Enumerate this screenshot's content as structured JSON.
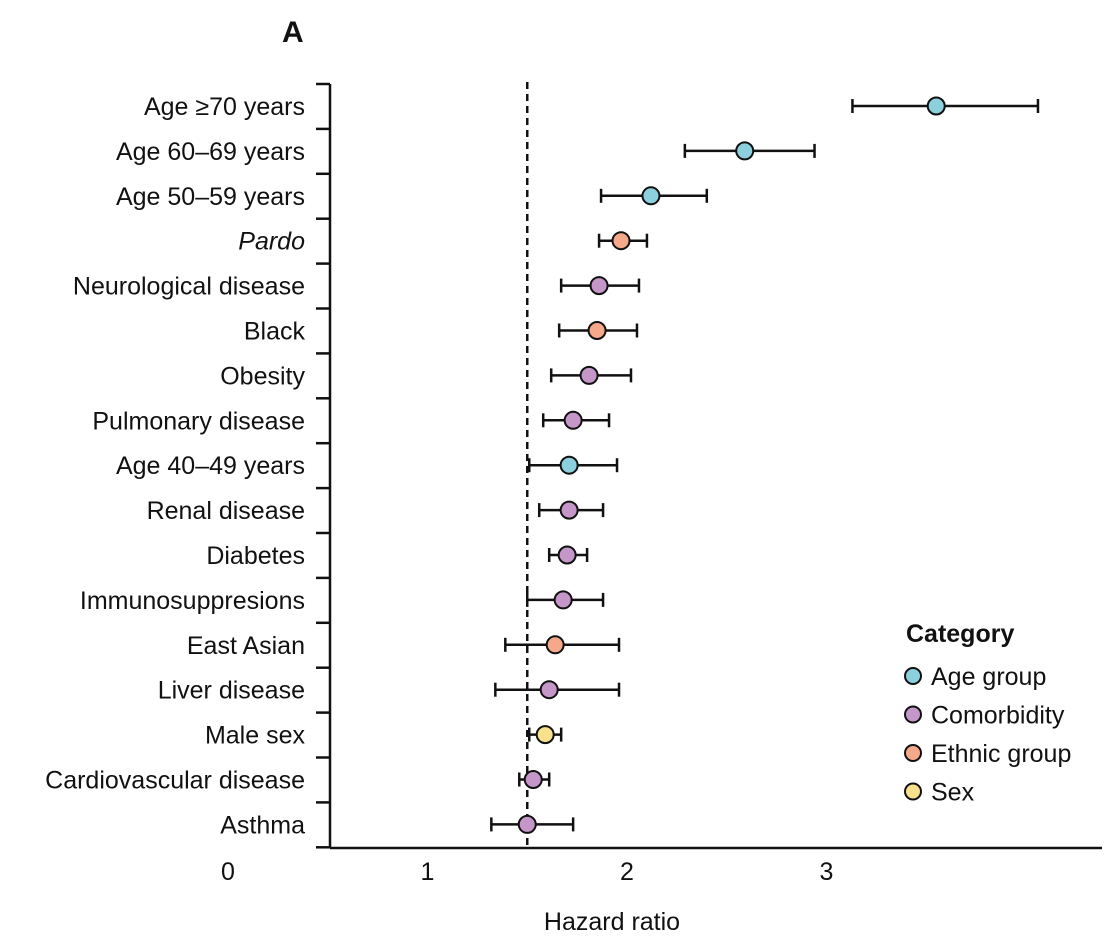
{
  "chart_data": {
    "type": "scatter",
    "panel_label": "A",
    "title": "",
    "xlabel": "Hazard ratio",
    "ylabel": "",
    "xlim": [
      0,
      4.4
    ],
    "x_ticks": [
      {
        "value": 0,
        "label": "0"
      },
      {
        "value": 1,
        "label": "1"
      },
      {
        "value": 2,
        "label": "2"
      },
      {
        "value": 3,
        "label": "3"
      }
    ],
    "reference_line": 1.5,
    "grid": false,
    "legend_position": "right",
    "legend_title": "Category",
    "categories": [
      {
        "key": "age",
        "name": "Age group",
        "color": "#8ccfdd"
      },
      {
        "key": "comorbidity",
        "name": "Comorbidity",
        "color": "#c497c8"
      },
      {
        "key": "ethnic",
        "name": "Ethnic group",
        "color": "#f6a98a"
      },
      {
        "key": "sex",
        "name": "Sex",
        "color": "#f8e08c"
      }
    ],
    "rows": [
      {
        "label": "Age ≥70 years",
        "italic": false,
        "category": "age",
        "hr": 3.55,
        "lower": 3.13,
        "upper": 4.06
      },
      {
        "label": "Age 60–69 years",
        "italic": false,
        "category": "age",
        "hr": 2.59,
        "lower": 2.29,
        "upper": 2.94
      },
      {
        "label": "Age 50–59 years",
        "italic": false,
        "category": "age",
        "hr": 2.12,
        "lower": 1.87,
        "upper": 2.4
      },
      {
        "label": "Pardo",
        "italic": true,
        "category": "ethnic",
        "hr": 1.97,
        "lower": 1.86,
        "upper": 2.1
      },
      {
        "label": "Neurological disease",
        "italic": false,
        "category": "comorbidity",
        "hr": 1.86,
        "lower": 1.67,
        "upper": 2.06
      },
      {
        "label": "Black",
        "italic": false,
        "category": "ethnic",
        "hr": 1.85,
        "lower": 1.66,
        "upper": 2.05
      },
      {
        "label": "Obesity",
        "italic": false,
        "category": "comorbidity",
        "hr": 1.81,
        "lower": 1.62,
        "upper": 2.02
      },
      {
        "label": "Pulmonary disease",
        "italic": false,
        "category": "comorbidity",
        "hr": 1.73,
        "lower": 1.58,
        "upper": 1.91
      },
      {
        "label": "Age 40–49 years",
        "italic": false,
        "category": "age",
        "hr": 1.71,
        "lower": 1.51,
        "upper": 1.95
      },
      {
        "label": "Renal disease",
        "italic": false,
        "category": "comorbidity",
        "hr": 1.71,
        "lower": 1.56,
        "upper": 1.88
      },
      {
        "label": "Diabetes",
        "italic": false,
        "category": "comorbidity",
        "hr": 1.7,
        "lower": 1.61,
        "upper": 1.8
      },
      {
        "label": "Immunosuppresions",
        "italic": false,
        "category": "comorbidity",
        "hr": 1.68,
        "lower": 1.5,
        "upper": 1.88
      },
      {
        "label": "East Asian",
        "italic": false,
        "category": "ethnic",
        "hr": 1.64,
        "lower": 1.39,
        "upper": 1.96
      },
      {
        "label": "Liver disease",
        "italic": false,
        "category": "comorbidity",
        "hr": 1.61,
        "lower": 1.34,
        "upper": 1.96
      },
      {
        "label": "Male sex",
        "italic": false,
        "category": "sex",
        "hr": 1.59,
        "lower": 1.51,
        "upper": 1.67
      },
      {
        "label": "Cardiovascular disease",
        "italic": false,
        "category": "comorbidity",
        "hr": 1.53,
        "lower": 1.46,
        "upper": 1.61
      },
      {
        "label": "Asthma",
        "italic": false,
        "category": "comorbidity",
        "hr": 1.5,
        "lower": 1.32,
        "upper": 1.73
      }
    ]
  }
}
